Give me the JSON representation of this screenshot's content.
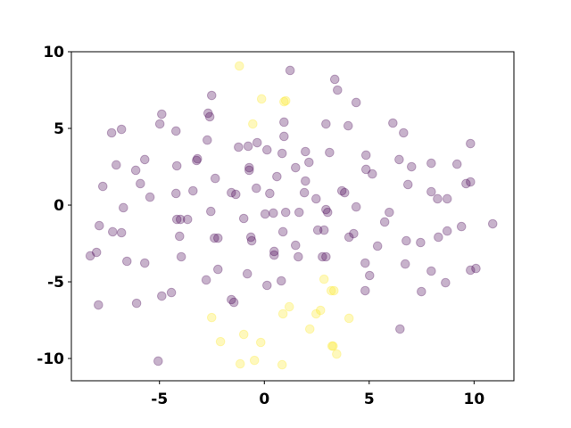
{
  "chart_data": {
    "type": "scatter",
    "xlim": [
      -9.2,
      11.9
    ],
    "ylim": [
      -11.45,
      10
    ],
    "xticks": [
      -5,
      0,
      5,
      10
    ],
    "yticks": [
      -10,
      -5,
      0,
      5,
      10
    ],
    "alpha": 0.3,
    "series": [
      {
        "color": "#440154",
        "x": [
          1.23,
          3.36,
          3.49,
          -2.51,
          4.38,
          -2.68,
          -4.89,
          -2.6,
          0.94,
          2.94,
          4.0,
          -4.98,
          -6.81,
          -7.28,
          6.13,
          6.64,
          -4.21,
          -2.72,
          -1.23,
          -0.34,
          0.94,
          -0.77,
          0.13,
          1.96,
          3.11,
          4.85,
          0.85,
          6.43,
          7.02,
          9.19,
          9.83,
          7.96,
          -7.06,
          -6.13,
          -5.7,
          -3.23,
          -3.19,
          -4.17,
          -0.72,
          -0.72,
          1.49,
          2.13,
          4.85,
          5.15,
          -7.7,
          -5.91,
          -2.34,
          -0.38,
          0.6,
          1.96,
          3.7,
          3.83,
          6.85,
          7.96,
          8.26,
          8.72,
          9.62,
          9.83,
          -5.45,
          -4.21,
          -3.4,
          -1.57,
          -1.36,
          0.26,
          1.91,
          2.47,
          -6.72,
          -4.17,
          -4.0,
          -3.66,
          -2.55,
          -0.98,
          0.04,
          0.43,
          1.02,
          1.66,
          2.94,
          3.02,
          4.38,
          5.96,
          5.74,
          -7.87,
          -7.23,
          -6.81,
          -4.04,
          -2.38,
          -2.21,
          -0.64,
          -0.6,
          0.89,
          1.49,
          2.55,
          2.85,
          4.04,
          4.26,
          5.4,
          6.77,
          7.45,
          8.3,
          8.72,
          9.4,
          10.89,
          -8.3,
          -8.0,
          -6.55,
          -5.7,
          -3.96,
          -2.21,
          -0.81,
          0.47,
          0.47,
          1.62,
          2.77,
          2.94,
          4.81,
          5.02,
          6.72,
          7.96,
          8.64,
          9.83,
          10.09,
          -2.77,
          0.13,
          0.81,
          4.81,
          7.49,
          -4.43,
          -4.89,
          -7.91,
          -6.09,
          -1.57,
          -1.45,
          6.47,
          -5.06
        ],
        "y": [
          8.78,
          8.2,
          7.5,
          7.15,
          6.69,
          5.99,
          5.93,
          5.76,
          5.41,
          5.29,
          5.17,
          5.29,
          4.94,
          4.71,
          5.35,
          4.71,
          4.83,
          4.24,
          3.78,
          4.07,
          4.48,
          3.84,
          3.6,
          3.49,
          3.43,
          3.26,
          3.37,
          2.97,
          2.5,
          2.67,
          4.01,
          2.73,
          2.62,
          2.27,
          2.97,
          2.91,
          3.02,
          2.56,
          2.44,
          2.27,
          2.44,
          2.79,
          2.33,
          2.03,
          1.22,
          1.4,
          1.74,
          1.1,
          1.86,
          1.57,
          0.93,
          0.81,
          1.34,
          0.87,
          0.41,
          0.41,
          1.4,
          1.51,
          0.52,
          0.76,
          0.93,
          0.81,
          0.7,
          0.76,
          0.81,
          0.41,
          -0.17,
          -0.93,
          -0.93,
          -0.93,
          -0.41,
          -0.87,
          -0.58,
          -0.52,
          -0.47,
          -0.47,
          -0.29,
          -0.47,
          -0.12,
          -0.47,
          -1.1,
          -1.34,
          -1.74,
          -1.8,
          -2.03,
          -2.15,
          -2.15,
          -2.09,
          -2.33,
          -1.74,
          -2.62,
          -1.63,
          -1.63,
          -2.09,
          -1.86,
          -2.67,
          -2.33,
          -2.44,
          -2.09,
          -1.69,
          -1.4,
          -1.22,
          -3.31,
          -3.08,
          -3.66,
          -3.78,
          -3.37,
          -4.19,
          -4.48,
          -3.02,
          -3.26,
          -3.37,
          -3.37,
          -3.37,
          -3.78,
          -4.59,
          -3.84,
          -4.3,
          -5.06,
          -4.24,
          -4.13,
          -4.88,
          -5.23,
          -4.94,
          -5.58,
          -5.64,
          -5.7,
          -5.93,
          -6.51,
          -6.4,
          -6.16,
          -6.34,
          -8.08,
          -10.17
        ]
      },
      {
        "color": "#fde725",
        "x": [
          -1.19,
          -0.13,
          0.94,
          1.02,
          -0.55,
          -2.51,
          -2.09,
          -0.98,
          -0.47,
          -0.17,
          -1.15,
          0.85,
          0.89,
          1.19,
          2.17,
          2.47,
          2.68,
          2.85,
          3.19,
          3.32,
          4.04,
          3.23,
          3.28,
          3.45
        ],
        "y": [
          9.07,
          6.92,
          6.74,
          6.8,
          5.29,
          -7.33,
          -8.9,
          -8.43,
          -10.12,
          -8.95,
          -10.35,
          -10.41,
          -7.09,
          -6.63,
          -8.08,
          -7.09,
          -6.86,
          -4.83,
          -5.58,
          -5.58,
          -7.38,
          -9.19,
          -9.19,
          -9.71
        ]
      }
    ]
  }
}
